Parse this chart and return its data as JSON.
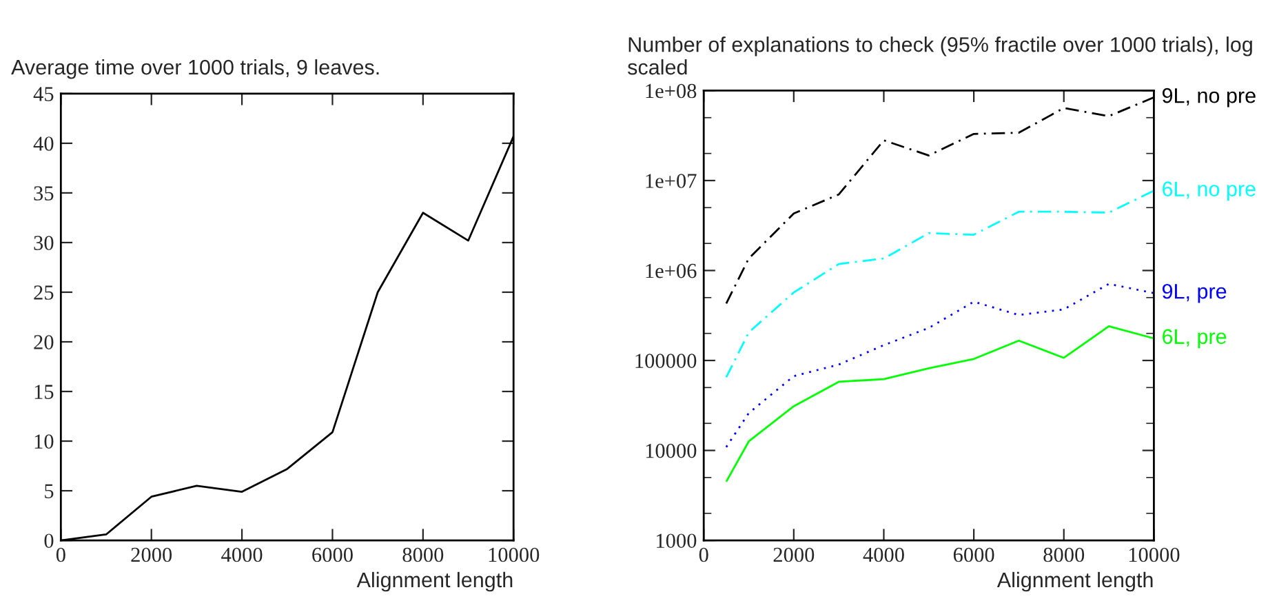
{
  "chart_data": [
    {
      "type": "line",
      "title": "Average time over 1000 trials, 9 leaves.",
      "xlabel": "Alignment length",
      "x": [
        0,
        1000,
        2000,
        3000,
        4000,
        5000,
        6000,
        7000,
        8000,
        9000,
        10000
      ],
      "series": [
        {
          "color": "#000000",
          "line_style": "solid",
          "values": [
            0,
            0.6,
            4.4,
            5.5,
            4.9,
            7.2,
            10.9,
            25,
            33,
            30.2,
            40.7
          ]
        }
      ],
      "xlim": [
        0,
        10000
      ],
      "xticks": [
        0,
        2000,
        4000,
        6000,
        8000,
        10000
      ],
      "ylim": [
        0,
        45
      ],
      "yticks": [
        0,
        5,
        10,
        15,
        20,
        25,
        30,
        35,
        40,
        45
      ],
      "grid": false,
      "legend": false
    },
    {
      "type": "line",
      "title": "Number of explanations to check (95% fractile over 1000 trials), log scaled",
      "xlabel": "Alignment length",
      "log": "y",
      "x": [
        500,
        1000,
        2000,
        3000,
        4000,
        5000,
        6000,
        7000,
        8000,
        9000,
        10000
      ],
      "series": [
        {
          "name": "9L, no pre",
          "color": "#000000",
          "line_style": "dashed",
          "values": [
            430000,
            1360000,
            4300000,
            7000000,
            28000000,
            19000000,
            33000000,
            34000000,
            64000000,
            52000000,
            84000000
          ]
        },
        {
          "name": "6L, no pre",
          "color": "#00ffff",
          "line_style": "dashed",
          "values": [
            65000,
            205000,
            570000,
            1180000,
            1360000,
            2600000,
            2500000,
            4500000,
            4500000,
            4400000,
            7700000
          ]
        },
        {
          "name": "9L, pre",
          "color": "#0000ff",
          "line_style": "dotted",
          "values": [
            10900,
            26000,
            67000,
            90000,
            148000,
            230000,
            450000,
            320000,
            370000,
            710000,
            560000
          ]
        },
        {
          "name": "6L, pre",
          "color": "#00ff00",
          "line_style": "solid",
          "values": [
            4500,
            12600,
            31000,
            58000,
            62000,
            82000,
            104000,
            166000,
            107000,
            240000,
            176000
          ]
        }
      ],
      "xlim": [
        0,
        10000
      ],
      "xticks": [
        0,
        2000,
        4000,
        6000,
        8000,
        10000
      ],
      "ylim": [
        1000,
        100000000
      ],
      "yticks": [
        {
          "value": 1000,
          "label": "1000"
        },
        {
          "value": 10000,
          "label": "10000"
        },
        {
          "value": 100000,
          "label": "100000"
        },
        {
          "value": 1000000,
          "label": "1e+06"
        },
        {
          "value": 10000000,
          "label": "1e+07"
        },
        {
          "value": 100000000,
          "label": "1e+08"
        }
      ],
      "grid": false,
      "legend": false
    }
  ]
}
